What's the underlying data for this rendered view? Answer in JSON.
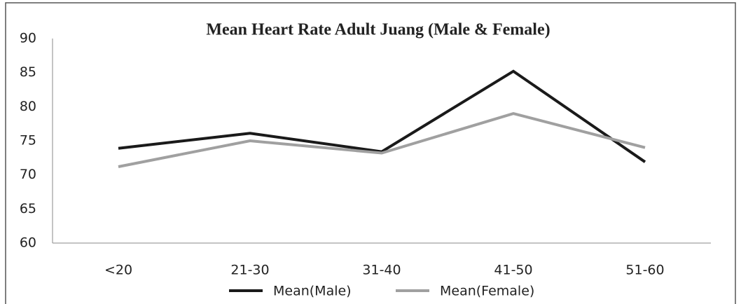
{
  "chart_data": {
    "type": "line",
    "title": "Mean Heart Rate Adult Juang (Male & Female)",
    "categories": [
      "<20",
      "21-30",
      "31-40",
      "41-50",
      "51-60"
    ],
    "series": [
      {
        "name": "Mean(Male)",
        "color": "#1a1a1a",
        "values": [
          73.9,
          76.1,
          73.4,
          85.2,
          71.9
        ]
      },
      {
        "name": "Mean(Female)",
        "color": "#a0a0a0",
        "values": [
          71.2,
          75.0,
          73.2,
          79.0,
          74.0
        ]
      }
    ],
    "ylim": [
      60,
      90
    ],
    "yticks": [
      60,
      65,
      70,
      75,
      80,
      85,
      90
    ],
    "grid": false,
    "legend": "bottom"
  }
}
